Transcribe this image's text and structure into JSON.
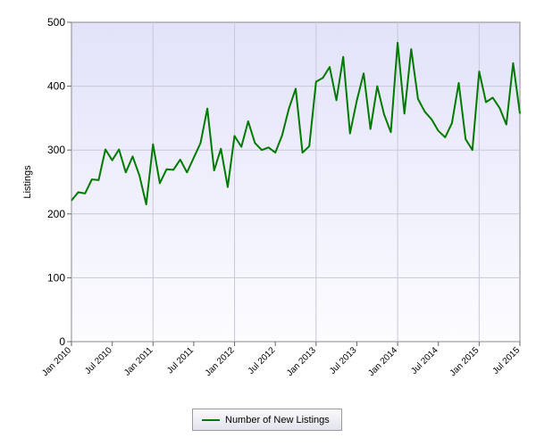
{
  "chart_data": {
    "type": "line",
    "title": "",
    "xlabel": "",
    "ylabel": "Listings",
    "ylim": [
      0,
      500
    ],
    "yticks": [
      0,
      100,
      200,
      300,
      400,
      500
    ],
    "xlim": [
      "2010-01",
      "2015-07"
    ],
    "xticks": [
      "Jan 2010",
      "Jul 2010",
      "Jan 2011",
      "Jul 2011",
      "Jan 2012",
      "Jul 2012",
      "Jan 2013",
      "Jul 2013",
      "Jan 2014",
      "Jul 2014",
      "Jan 2015",
      "Jul 2015"
    ],
    "grid": true,
    "legend": "bottom",
    "series": [
      {
        "name": "Number of New Listings",
        "color": "#007a00",
        "x": [
          "2010-01",
          "2010-02",
          "2010-03",
          "2010-04",
          "2010-05",
          "2010-06",
          "2010-07",
          "2010-08",
          "2010-09",
          "2010-10",
          "2010-11",
          "2010-12",
          "2011-01",
          "2011-02",
          "2011-03",
          "2011-04",
          "2011-05",
          "2011-06",
          "2011-07",
          "2011-08",
          "2011-09",
          "2011-10",
          "2011-11",
          "2011-12",
          "2012-01",
          "2012-02",
          "2012-03",
          "2012-04",
          "2012-05",
          "2012-06",
          "2012-07",
          "2012-08",
          "2012-09",
          "2012-10",
          "2012-11",
          "2012-12",
          "2013-01",
          "2013-02",
          "2013-03",
          "2013-04",
          "2013-05",
          "2013-06",
          "2013-07",
          "2013-08",
          "2013-09",
          "2013-10",
          "2013-11",
          "2013-12",
          "2014-01",
          "2014-02",
          "2014-03",
          "2014-04",
          "2014-05",
          "2014-06",
          "2014-07",
          "2014-08",
          "2014-09",
          "2014-10",
          "2014-11",
          "2014-12",
          "2015-01",
          "2015-02",
          "2015-03",
          "2015-04",
          "2015-05",
          "2015-06",
          "2015-07"
        ],
        "values": [
          221,
          234,
          232,
          254,
          253,
          301,
          284,
          301,
          265,
          290,
          260,
          215,
          309,
          248,
          270,
          269,
          285,
          265,
          288,
          311,
          365,
          268,
          302,
          242,
          322,
          305,
          345,
          311,
          300,
          304,
          296,
          323,
          365,
          396,
          296,
          306,
          407,
          413,
          430,
          378,
          446,
          326,
          378,
          420,
          333,
          400,
          356,
          328,
          468,
          357,
          458,
          380,
          360,
          348,
          330,
          320,
          342,
          405,
          317,
          300,
          423,
          375,
          382,
          366,
          340,
          436,
          357
        ]
      }
    ]
  }
}
